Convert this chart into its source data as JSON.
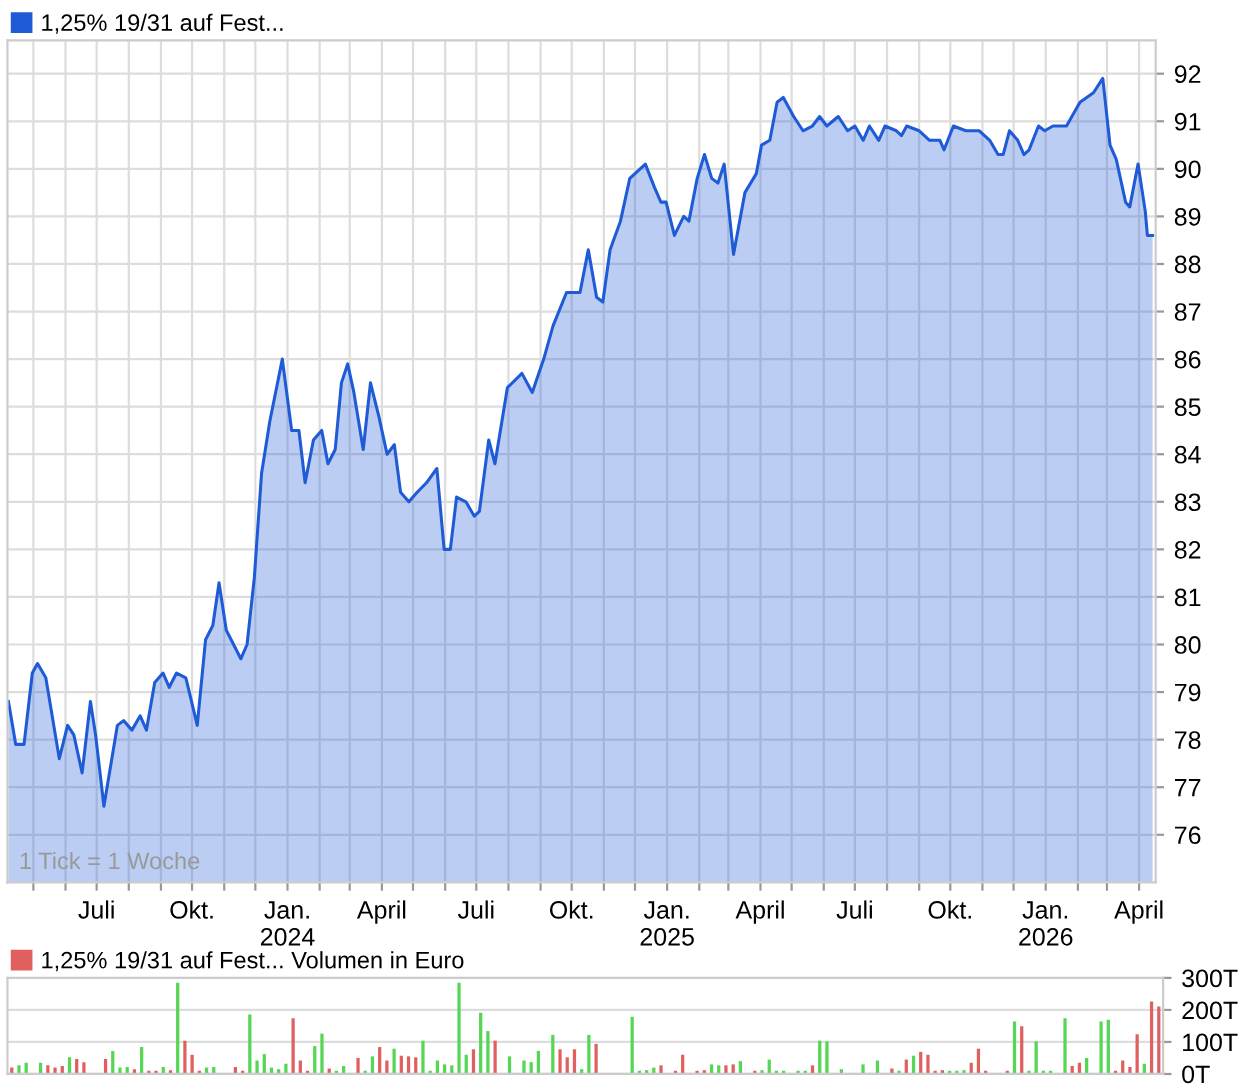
{
  "chart_data": [
    {
      "type": "area",
      "legend": "top left",
      "grid": true,
      "series": [
        {
          "name": "1,25% 19/31 auf Fest...",
          "color": "#1f5bd6",
          "x": [
            "2023-04-07",
            "2023-04-14",
            "2023-04-22",
            "2023-04-30",
            "2023-05-05",
            "2023-05-13",
            "2023-05-26",
            "2023-06-03",
            "2023-06-09",
            "2023-06-17",
            "2023-06-25",
            "2023-06-30",
            "2023-07-08",
            "2023-07-21",
            "2023-07-27",
            "2023-08-04",
            "2023-08-12",
            "2023-08-18",
            "2023-08-26",
            "2023-09-03",
            "2023-09-09",
            "2023-09-16",
            "2023-09-25",
            "2023-10-06",
            "2023-10-14",
            "2023-10-21",
            "2023-10-27",
            "2023-11-03",
            "2023-11-17",
            "2023-11-23",
            "2023-11-30",
            "2023-12-07",
            "2023-12-15",
            "2023-12-27",
            "2024-01-05",
            "2024-01-12",
            "2024-01-18",
            "2024-01-26",
            "2024-02-03",
            "2024-02-09",
            "2024-02-16",
            "2024-02-22",
            "2024-02-28",
            "2024-03-05",
            "2024-03-14",
            "2024-03-21",
            "2024-03-29",
            "2024-04-06",
            "2024-04-13",
            "2024-04-19",
            "2024-04-27",
            "2024-05-05",
            "2024-05-14",
            "2024-05-24",
            "2024-05-31",
            "2024-06-06",
            "2024-06-12",
            "2024-06-21",
            "2024-06-29",
            "2024-07-04",
            "2024-07-13",
            "2024-07-19",
            "2024-07-31",
            "2024-08-14",
            "2024-08-24",
            "2024-09-04",
            "2024-09-13",
            "2024-09-26",
            "2024-10-09",
            "2024-10-17",
            "2024-10-25",
            "2024-10-31",
            "2024-11-07",
            "2024-11-17",
            "2024-11-26",
            "2024-12-11",
            "2024-12-20",
            "2024-12-26",
            "2024-12-31",
            "2025-01-08",
            "2025-01-17",
            "2025-01-22",
            "2025-01-30",
            "2025-02-06",
            "2025-02-13",
            "2025-02-19",
            "2025-02-25",
            "2025-03-06",
            "2025-03-17",
            "2025-03-28",
            "2025-04-02",
            "2025-04-10",
            "2025-04-17",
            "2025-04-23",
            "2025-05-03",
            "2025-05-12",
            "2025-05-21",
            "2025-05-28",
            "2025-06-04",
            "2025-06-15",
            "2025-06-24",
            "2025-07-01",
            "2025-07-09",
            "2025-07-15",
            "2025-07-24",
            "2025-07-30",
            "2025-08-10",
            "2025-08-15",
            "2025-08-20",
            "2025-09-01",
            "2025-09-11",
            "2025-09-21",
            "2025-09-25",
            "2025-10-04",
            "2025-10-16",
            "2025-10-29",
            "2025-11-08",
            "2025-11-16",
            "2025-11-21",
            "2025-11-27",
            "2025-12-05",
            "2025-12-11",
            "2025-12-16",
            "2025-12-25",
            "2025-12-31",
            "2026-01-08",
            "2026-01-21",
            "2026-02-03",
            "2026-02-16",
            "2026-02-25",
            "2026-03-04",
            "2026-03-10",
            "2026-03-19",
            "2026-03-23",
            "2026-03-31",
            "2026-04-07",
            "2026-04-09",
            "2026-04-14"
          ],
          "values": [
            78.8,
            77.9,
            77.9,
            79.4,
            79.6,
            79.3,
            77.6,
            78.3,
            78.1,
            77.3,
            78.8,
            78.1,
            76.6,
            78.3,
            78.4,
            78.2,
            78.5,
            78.2,
            79.2,
            79.4,
            79.1,
            79.4,
            79.3,
            78.3,
            80.1,
            80.4,
            81.3,
            80.3,
            79.7,
            80.0,
            81.4,
            83.6,
            84.7,
            86.0,
            84.5,
            84.5,
            83.4,
            84.3,
            84.5,
            83.8,
            84.1,
            85.5,
            85.9,
            85.3,
            84.1,
            85.5,
            84.8,
            84.0,
            84.2,
            83.2,
            83.0,
            83.2,
            83.4,
            83.7,
            82.0,
            82.0,
            83.1,
            83.0,
            82.7,
            82.8,
            84.3,
            83.8,
            85.4,
            85.7,
            85.3,
            86.0,
            86.7,
            87.4,
            87.4,
            88.3,
            87.3,
            87.2,
            88.3,
            88.9,
            89.8,
            90.1,
            89.6,
            89.3,
            89.3,
            88.6,
            89.0,
            88.9,
            89.8,
            90.3,
            89.8,
            89.7,
            90.1,
            88.2,
            89.5,
            89.9,
            90.5,
            90.6,
            91.4,
            91.5,
            91.1,
            90.8,
            90.9,
            91.1,
            90.9,
            91.1,
            90.8,
            90.9,
            90.6,
            90.9,
            90.6,
            90.9,
            90.8,
            90.7,
            90.9,
            90.8,
            90.6,
            90.6,
            90.4,
            90.9,
            90.8,
            90.8,
            90.6,
            90.3,
            90.3,
            90.8,
            90.6,
            90.3,
            90.4,
            90.9,
            90.8,
            90.9,
            90.9,
            91.4,
            91.6,
            91.9,
            90.5,
            90.2,
            89.3,
            89.2,
            90.1,
            89.1,
            88.6,
            88.6
          ]
        }
      ],
      "xlim": [
        "2023-04-06",
        "2026-04-17"
      ],
      "xticks": [
        {
          "value": "2023-05-01",
          "label": null
        },
        {
          "value": "2023-06-01",
          "label": null
        },
        {
          "value": "2023-07-01",
          "label": "Juli"
        },
        {
          "value": "2023-08-01",
          "label": null
        },
        {
          "value": "2023-09-01",
          "label": null
        },
        {
          "value": "2023-10-01",
          "label": "Okt."
        },
        {
          "value": "2023-11-01",
          "label": null
        },
        {
          "value": "2023-12-01",
          "label": null
        },
        {
          "value": "2024-01-01",
          "label": "Jan.\n2024"
        },
        {
          "value": "2024-02-01",
          "label": null
        },
        {
          "value": "2024-03-01",
          "label": null
        },
        {
          "value": "2024-04-01",
          "label": "April"
        },
        {
          "value": "2024-05-01",
          "label": null
        },
        {
          "value": "2024-06-01",
          "label": null
        },
        {
          "value": "2024-07-01",
          "label": "Juli"
        },
        {
          "value": "2024-08-01",
          "label": null
        },
        {
          "value": "2024-09-01",
          "label": null
        },
        {
          "value": "2024-10-01",
          "label": "Okt."
        },
        {
          "value": "2024-11-01",
          "label": null
        },
        {
          "value": "2024-12-01",
          "label": null
        },
        {
          "value": "2025-01-01",
          "label": "Jan.\n2025"
        },
        {
          "value": "2025-02-01",
          "label": null
        },
        {
          "value": "2025-03-01",
          "label": null
        },
        {
          "value": "2025-04-01",
          "label": "April"
        },
        {
          "value": "2025-05-01",
          "label": null
        },
        {
          "value": "2025-06-01",
          "label": null
        },
        {
          "value": "2025-07-01",
          "label": "Juli"
        },
        {
          "value": "2025-08-01",
          "label": null
        },
        {
          "value": "2025-09-01",
          "label": null
        },
        {
          "value": "2025-10-01",
          "label": "Okt."
        },
        {
          "value": "2025-11-01",
          "label": null
        },
        {
          "value": "2025-12-01",
          "label": null
        },
        {
          "value": "2026-01-01",
          "label": "Jan.\n2026"
        },
        {
          "value": "2026-02-01",
          "label": null
        },
        {
          "value": "2026-03-01",
          "label": null
        },
        {
          "value": "2026-04-01",
          "label": "April"
        }
      ],
      "ylim": [
        75.0,
        92.7
      ],
      "yticks": [
        76,
        77,
        78,
        79,
        80,
        81,
        82,
        83,
        84,
        85,
        86,
        87,
        88,
        89,
        90,
        91,
        92
      ],
      "annotations": [
        "1 Tick = 1 Woche"
      ]
    },
    {
      "type": "bar",
      "legend": "top left",
      "grid": "y",
      "tick_labels": "y",
      "categories": [
        null,
        null,
        null,
        null,
        null,
        null,
        null,
        null,
        null,
        null,
        null,
        null,
        null,
        null,
        null,
        null,
        null,
        null,
        null,
        null,
        null,
        null,
        null,
        null,
        null,
        null,
        null,
        null,
        null,
        null,
        null,
        null,
        null,
        null,
        null,
        null,
        null,
        null,
        null,
        null,
        null,
        null,
        null,
        null,
        null,
        null,
        null,
        null,
        null,
        null,
        null,
        null,
        null,
        null,
        null,
        null,
        null,
        null,
        null,
        null,
        null,
        null,
        null,
        null,
        null,
        null,
        null,
        null,
        null,
        null,
        null,
        null,
        null,
        null,
        null,
        null,
        null,
        null,
        null,
        null,
        null,
        null,
        null,
        null,
        null,
        null,
        null,
        null,
        null,
        null,
        null,
        null,
        null,
        null,
        null,
        null,
        null,
        null,
        null,
        null,
        null,
        null,
        null,
        null,
        null,
        null,
        null,
        null,
        null,
        null,
        null,
        null,
        null,
        null,
        null,
        null,
        null,
        null,
        null,
        null,
        null,
        null,
        null,
        null,
        null,
        null,
        null,
        null,
        null,
        null,
        null,
        null,
        null,
        null,
        null,
        null,
        null,
        null,
        null,
        null,
        null,
        null,
        null,
        null,
        null,
        null,
        null,
        null,
        null,
        null,
        null,
        null,
        null,
        null,
        null,
        null,
        null,
        null,
        null,
        null
      ],
      "series": [
        {
          "name": "1,25% 19/31 auf Fest... Volumen in Euro",
          "color": "#e06060",
          "values": [
            20,
            27,
            35,
            null,
            35,
            27,
            20,
            25,
            52,
            47,
            37,
            null,
            null,
            47,
            72,
            20,
            22,
            15,
            84,
            10,
            10,
            22,
            12,
            285,
            104,
            60,
            10,
            20,
            22,
            null,
            null,
            22,
            10,
            186,
            42,
            62,
            20,
            15,
            32,
            174,
            42,
            10,
            87,
            126,
            17,
            10,
            25,
            null,
            50,
            10,
            55,
            84,
            42,
            79,
            57,
            55,
            52,
            104,
            10,
            42,
            30,
            27,
            285,
            60,
            77,
            191,
            134,
            104,
            null,
            55,
            null,
            42,
            37,
            72,
            null,
            122,
            77,
            52,
            77,
            15,
            122,
            94,
            null,
            null,
            null,
            null,
            179,
            10,
            12,
            20,
            27,
            null,
            10,
            60,
            null,
            10,
            12,
            30,
            27,
            27,
            30,
            40,
            null,
            10,
            12,
            45,
            10,
            10,
            null,
            10,
            10,
            27,
            104,
            102,
            null,
            15,
            null,
            null,
            30,
            null,
            42,
            null,
            17,
            10,
            45,
            57,
            69,
            60,
            10,
            12,
            10,
            10,
            12,
            35,
            79,
            10,
            null,
            null,
            10,
            164,
            149,
            10,
            102,
            10,
            10,
            null,
            174,
            25,
            35,
            50,
            null,
            164,
            169,
            10,
            42,
            22,
            124,
            32,
            226,
            211
          ],
          "colors": [
            "#e06060",
            "#55d655",
            "#55d655",
            null,
            "#55d655",
            "#e06060",
            "#e06060",
            "#e06060",
            "#55d655",
            "#e06060",
            "#e06060",
            null,
            null,
            "#e06060",
            "#55d655",
            "#55d655",
            "#55d655",
            "#e06060",
            "#55d655",
            "#e06060",
            "#e06060",
            "#55d655",
            "#e06060",
            "#55d655",
            "#e06060",
            "#e06060",
            "#e06060",
            "#55d655",
            "#55d655",
            null,
            null,
            "#e06060",
            "#e06060",
            "#55d655",
            "#55d655",
            "#55d655",
            "#55d655",
            "#55d655",
            "#55d655",
            "#e06060",
            "#e06060",
            "#e06060",
            "#55d655",
            "#55d655",
            "#e06060",
            "#55d655",
            "#55d655",
            null,
            "#e06060",
            "#55d655",
            "#55d655",
            "#e06060",
            "#e06060",
            "#55d655",
            "#e06060",
            "#e06060",
            "#e06060",
            "#55d655",
            "#55d655",
            "#55d655",
            "#55d655",
            "#55d655",
            "#55d655",
            "#55d655",
            "#e06060",
            "#55d655",
            "#55d655",
            "#e06060",
            null,
            "#55d655",
            null,
            "#55d655",
            "#55d655",
            "#55d655",
            null,
            "#55d655",
            "#e06060",
            "#e06060",
            "#e06060",
            "#55d655",
            "#55d655",
            "#e06060",
            null,
            null,
            null,
            null,
            "#55d655",
            "#55d655",
            "#55d655",
            "#55d655",
            "#e06060",
            null,
            "#e06060",
            "#e06060",
            null,
            "#e06060",
            "#e06060",
            "#55d655",
            "#55d655",
            "#e06060",
            "#e06060",
            "#55d655",
            null,
            "#e06060",
            "#55d655",
            "#55d655",
            "#55d655",
            "#55d655",
            null,
            "#55d655",
            "#55d655",
            "#e06060",
            "#55d655",
            "#55d655",
            null,
            "#55d655",
            null,
            null,
            "#55d655",
            null,
            "#55d655",
            null,
            "#e06060",
            "#55d655",
            "#e06060",
            "#55d655",
            "#e06060",
            "#e06060",
            "#e06060",
            "#e06060",
            "#55d655",
            "#55d655",
            "#55d655",
            "#e06060",
            "#e06060",
            "#e06060",
            null,
            null,
            "#e06060",
            "#55d655",
            "#e06060",
            "#55d655",
            "#55d655",
            "#55d655",
            "#55d655",
            null,
            "#55d655",
            "#e06060",
            "#e06060",
            "#55d655",
            null,
            "#55d655",
            "#55d655",
            "#e06060",
            "#e06060",
            "#e06060",
            "#e06060",
            "#55d655",
            "#e06060",
            "#e06060"
          ]
        }
      ],
      "ylim": [
        0,
        300
      ],
      "yticks": [
        {
          "value": 0,
          "label": "0T"
        },
        {
          "value": 100,
          "label": "100T"
        },
        {
          "value": 200,
          "label": "200T"
        },
        {
          "value": 300,
          "label": "300T"
        }
      ]
    }
  ]
}
